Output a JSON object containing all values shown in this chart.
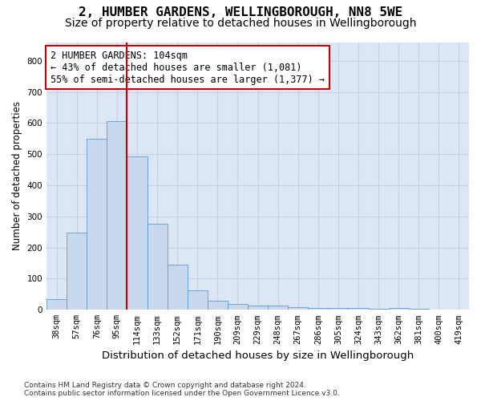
{
  "title": "2, HUMBER GARDENS, WELLINGBOROUGH, NN8 5WE",
  "subtitle": "Size of property relative to detached houses in Wellingborough",
  "xlabel": "Distribution of detached houses by size in Wellingborough",
  "ylabel": "Number of detached properties",
  "bar_labels": [
    "38sqm",
    "57sqm",
    "76sqm",
    "95sqm",
    "114sqm",
    "133sqm",
    "152sqm",
    "171sqm",
    "190sqm",
    "209sqm",
    "229sqm",
    "248sqm",
    "267sqm",
    "286sqm",
    "305sqm",
    "324sqm",
    "343sqm",
    "362sqm",
    "381sqm",
    "400sqm",
    "419sqm"
  ],
  "bar_values": [
    33,
    247,
    549,
    606,
    493,
    277,
    146,
    62,
    30,
    18,
    14,
    13,
    8,
    6,
    6,
    5,
    4,
    5,
    4,
    2,
    2
  ],
  "bar_color": "#c8d9ee",
  "bar_edgecolor": "#5b9bd5",
  "vline_x": 3.5,
  "vline_color": "#cc0000",
  "annotation_text": "2 HUMBER GARDENS: 104sqm\n← 43% of detached houses are smaller (1,081)\n55% of semi-detached houses are larger (1,377) →",
  "annotation_box_facecolor": "#ffffff",
  "annotation_box_edgecolor": "#cc0000",
  "ylim": [
    0,
    860
  ],
  "yticks": [
    0,
    100,
    200,
    300,
    400,
    500,
    600,
    700,
    800
  ],
  "grid_color": "#c8d0e0",
  "background_color": "#dce6f5",
  "footer": "Contains HM Land Registry data © Crown copyright and database right 2024.\nContains public sector information licensed under the Open Government Licence v3.0.",
  "title_fontsize": 11.5,
  "subtitle_fontsize": 10,
  "xlabel_fontsize": 9.5,
  "ylabel_fontsize": 8.5,
  "tick_fontsize": 7.5,
  "footer_fontsize": 6.5,
  "annot_fontsize": 8.5
}
